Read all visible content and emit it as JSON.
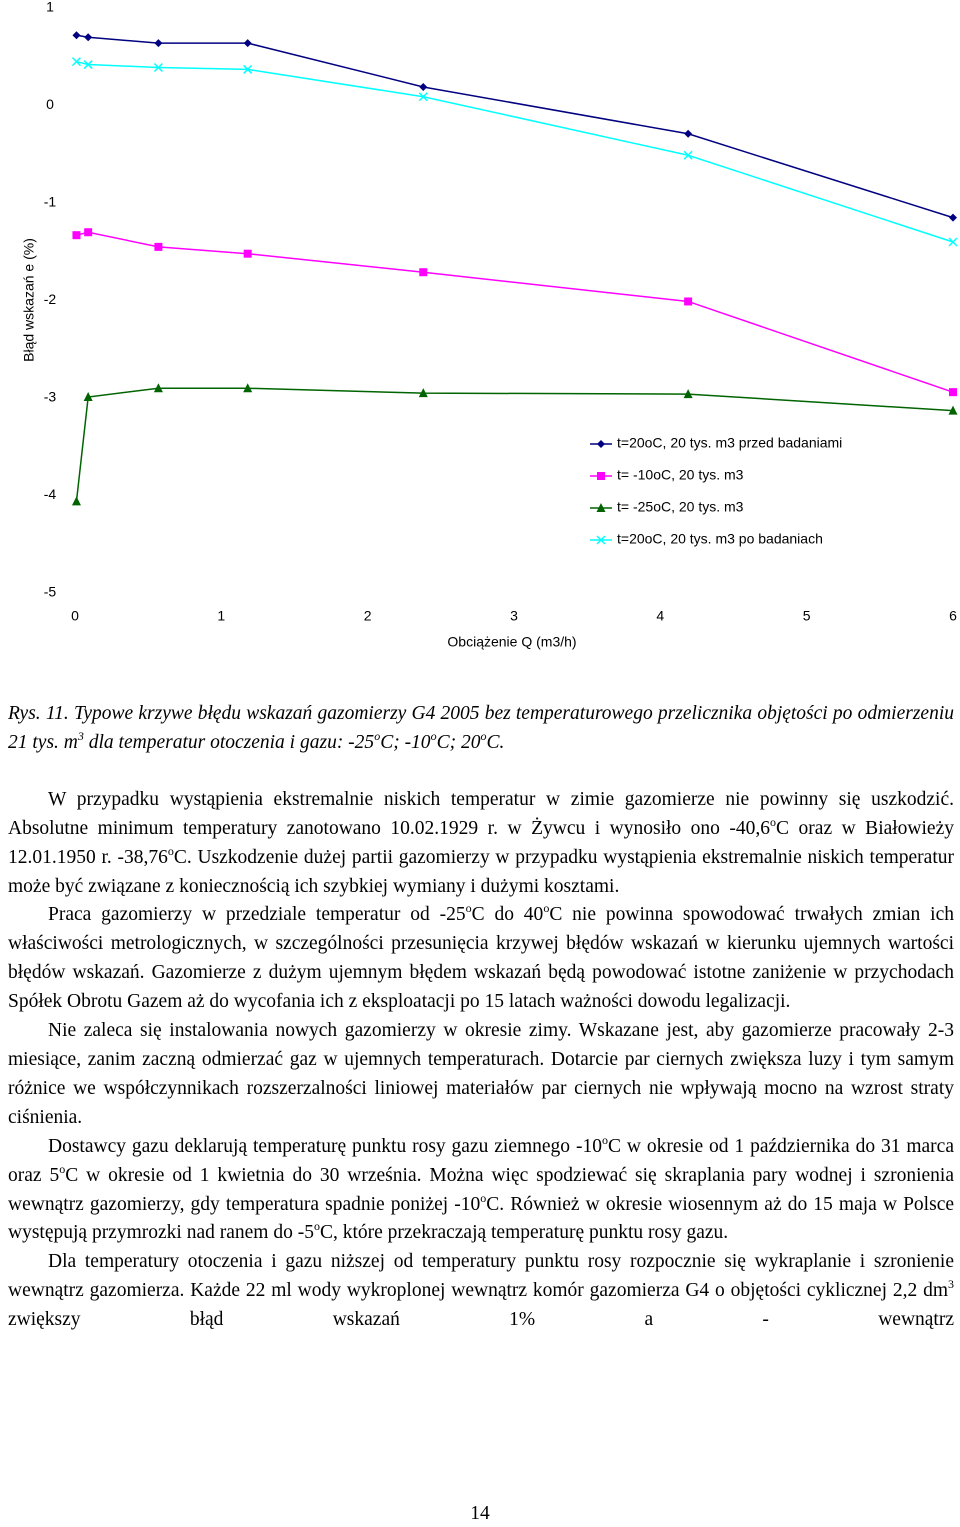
{
  "chart_data": {
    "type": "line",
    "y_label": "Błąd wskazań e (%)",
    "x_label": "Obciążenie Q (m3/h)",
    "xlim": [
      0,
      6
    ],
    "xticks": [
      0,
      1,
      2,
      3,
      4,
      5,
      6
    ],
    "ylim": [
      -5,
      1
    ],
    "yticks": [
      -5,
      -4,
      -3,
      -2,
      -1,
      0,
      1
    ],
    "x": [
      0.01,
      0.09,
      0.57,
      1.18,
      2.38,
      4.19,
      6
    ],
    "series": [
      {
        "name": "t=20oC, 20 tys. m3 przed badaniami",
        "color": "#000080",
        "marker": "diamond",
        "values": [
          0.72,
          0.7,
          0.64,
          0.64,
          0.19,
          -0.29,
          -1.15
        ]
      },
      {
        "name": "t= -10oC, 20 tys. m3",
        "color": "#ff00ff",
        "marker": "square",
        "values": [
          -1.33,
          -1.3,
          -1.45,
          -1.52,
          -1.71,
          -2.01,
          -2.94
        ]
      },
      {
        "name": "t= -25oC, 20 tys. m3",
        "color": "#006400",
        "marker": "triangle",
        "values": [
          -4.06,
          -2.99,
          -2.9,
          -2.9,
          -2.95,
          -2.96,
          -3.13
        ]
      },
      {
        "name": "t=20oC, 20 tys. m3 po badaniach",
        "color": "#00ffff",
        "marker": "cross",
        "values": [
          0.45,
          0.42,
          0.39,
          0.37,
          0.09,
          -0.51,
          -1.4
        ]
      }
    ]
  },
  "caption": [
    "Rys. 11. Typowe krzywe błędu wskazań gazomierzy G4 2005 bez temperaturowego przelicznika objętości po odmierzeniu 21 tys. m",
    "3",
    " dla temperatur otoczenia i gazu: -25",
    "o",
    "C; -10",
    "o",
    "C; 20",
    "o",
    "C."
  ],
  "paragraphs": [
    [
      "W przypadku wystąpienia ekstremalnie niskich temperatur w zimie gazomierze nie powinny się uszkodzić. Absolutne minimum temperatury zanotowano 10.02.1929 r. w Żywcu i wynosiło ono -40,6",
      "o",
      "C oraz w Białowieży 12.01.1950 r. -38,76",
      "o",
      "C. Uszkodzenie dużej partii gazomierzy w przypadku wystąpienia ekstremalnie niskich temperatur może być związane z koniecznością ich szybkiej wymiany i dużymi kosztami."
    ],
    [
      "Praca gazomierzy w przedziale temperatur od -25",
      "o",
      "C do 40",
      "o",
      "C nie powinna spowodować trwałych zmian ich właściwości metrologicznych, w szczególności przesunięcia krzywej błędów wskazań w kierunku ujemnych wartości błędów wskazań. Gazomierze z dużym ujemnym błędem wskazań będą powodować istotne zaniżenie w przychodach Spółek Obrotu Gazem aż do wycofania ich z eksploatacji po 15 latach ważności dowodu legalizacji."
    ],
    [
      "Nie zaleca się instalowania nowych gazomierzy w okresie zimy. Wskazane jest, aby gazomierze pracowały 2-3 miesiące, zanim zaczną odmierzać gaz w ujemnych temperaturach. Dotarcie par ciernych zwiększa luzy i tym samym różnice we współczynnikach rozszerzalności liniowej materiałów par ciernych nie wpływają mocno na wzrost straty ciśnienia."
    ],
    [
      "Dostawcy gazu deklarują temperaturę punktu rosy gazu ziemnego -10",
      "o",
      "C w okresie od 1 października do 31 marca oraz 5",
      "o",
      "C w okresie od 1 kwietnia do 30 września. Można więc spodziewać się skraplania pary wodnej i szronienia wewnątrz gazomierzy, gdy temperatura spadnie poniżej -10",
      "o",
      "C. Również w okresie wiosennym aż do 15 maja w Polsce występują przymrozki nad ranem do -5",
      "o",
      "C, które przekraczają temperaturę punktu rosy gazu."
    ],
    [
      "Dla temperatury otoczenia i gazu niższej od temperatury punktu rosy rozpocznie się wykraplanie i szronienie wewnątrz gazomierza. Każde 22 ml wody wykroplonej wewnątrz komór gazomierza G4 o objętości cyklicznej 2,2 dm",
      "3",
      " zwiększy błąd wskazań 1% a - wewnątrz"
    ]
  ],
  "page_number": "14"
}
